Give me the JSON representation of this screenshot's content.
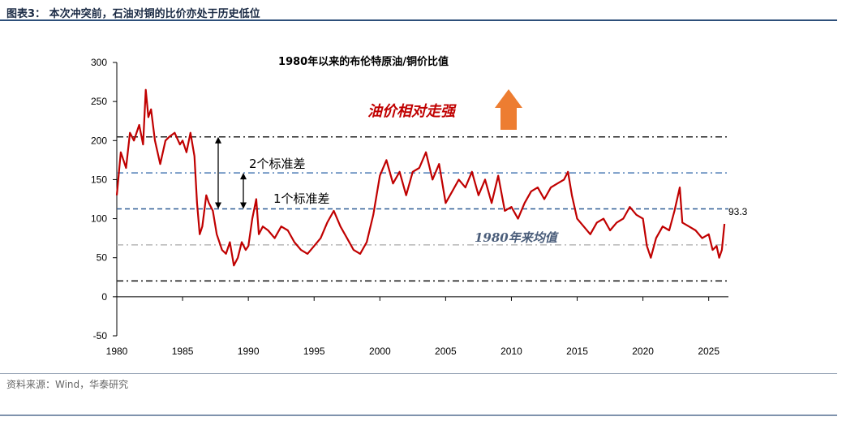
{
  "figure_title": "图表3：  本次冲突前，石油对铜的比价亦处于历史低位",
  "source": "资料来源：Wind，华泰研究",
  "chart_data": {
    "type": "line",
    "title": "1980年以来的布伦特原油/铜价比值",
    "xlabel": "",
    "ylabel": "",
    "xlim": [
      1980,
      2026.5
    ],
    "ylim": [
      -50,
      300
    ],
    "xticks": [
      1980,
      1985,
      1990,
      1995,
      2000,
      2005,
      2010,
      2015,
      2020,
      2025
    ],
    "yticks": [
      -50,
      0,
      50,
      100,
      150,
      200,
      250,
      300
    ],
    "grid": false,
    "series": [
      {
        "color": "#c00000",
        "x": [
          1980.0,
          1980.3,
          1980.7,
          1981.0,
          1981.3,
          1981.7,
          1982.0,
          1982.2,
          1982.4,
          1982.6,
          1982.9,
          1983.3,
          1983.7,
          1984.0,
          1984.4,
          1984.8,
          1985.0,
          1985.3,
          1985.6,
          1985.9,
          1986.1,
          1986.3,
          1986.5,
          1986.8,
          1987.0,
          1987.3,
          1987.6,
          1988.0,
          1988.3,
          1988.6,
          1988.9,
          1989.2,
          1989.5,
          1989.8,
          1990.0,
          1990.3,
          1990.6,
          1990.8,
          1991.1,
          1991.5,
          1992.0,
          1992.5,
          1993.0,
          1993.5,
          1994.0,
          1994.5,
          1995.0,
          1995.5,
          1996.0,
          1996.5,
          1997.0,
          1997.5,
          1998.0,
          1998.5,
          1999.0,
          1999.5,
          2000.0,
          2000.5,
          2001.0,
          2001.5,
          2002.0,
          2002.5,
          2003.0,
          2003.5,
          2004.0,
          2004.5,
          2005.0,
          2005.5,
          2006.0,
          2006.5,
          2007.0,
          2007.5,
          2008.0,
          2008.5,
          2009.0,
          2009.5,
          2010.0,
          2010.5,
          2011.0,
          2011.5,
          2012.0,
          2012.5,
          2013.0,
          2013.5,
          2014.0,
          2014.3,
          2014.6,
          2015.0,
          2015.5,
          2016.0,
          2016.5,
          2017.0,
          2017.5,
          2018.0,
          2018.5,
          2019.0,
          2019.5,
          2020.0,
          2020.3,
          2020.6,
          2021.0,
          2021.5,
          2022.0,
          2022.4,
          2022.8,
          2023.0,
          2023.5,
          2024.0,
          2024.5,
          2025.0,
          2025.3,
          2025.6,
          2025.8,
          2026.0,
          2026.2
        ],
        "y": [
          130,
          185,
          165,
          210,
          200,
          220,
          195,
          265,
          230,
          240,
          200,
          170,
          200,
          205,
          210,
          195,
          200,
          185,
          210,
          180,
          120,
          80,
          90,
          130,
          120,
          110,
          80,
          60,
          55,
          70,
          40,
          50,
          70,
          60,
          65,
          100,
          125,
          80,
          90,
          85,
          75,
          90,
          85,
          70,
          60,
          55,
          65,
          75,
          95,
          110,
          90,
          75,
          60,
          55,
          70,
          105,
          155,
          175,
          145,
          160,
          130,
          160,
          165,
          185,
          150,
          170,
          120,
          135,
          150,
          140,
          160,
          130,
          150,
          120,
          155,
          110,
          115,
          100,
          120,
          135,
          140,
          125,
          140,
          145,
          150,
          160,
          130,
          100,
          90,
          80,
          95,
          100,
          85,
          95,
          100,
          115,
          105,
          100,
          65,
          50,
          75,
          90,
          85,
          110,
          140,
          95,
          90,
          85,
          75,
          80,
          60,
          65,
          50,
          60,
          93.3
        ]
      }
    ],
    "reference_lines": [
      {
        "label": "1980年来均值",
        "y": 66.4,
        "style": "dashdot",
        "color": "#b8b8b8"
      },
      {
        "label": "1个标准差",
        "y": 112.5,
        "style": "dashed",
        "color": "#2e5c96"
      },
      {
        "label": "1个标准差",
        "y": 20.3,
        "style": "dashdot",
        "color": "#222222"
      },
      {
        "label": "2个标准差",
        "y": 158.6,
        "style": "dashdot",
        "color": "#4a7ab4"
      },
      {
        "label": "2个标准差",
        "y": 204.7,
        "style": "dashdot",
        "color": "#222222"
      }
    ],
    "annotations": [
      {
        "text": "油价相对走强",
        "color": "#c00000",
        "italic": true
      },
      {
        "text": "2个标准差"
      },
      {
        "text": "1个标准差"
      },
      {
        "text": "1980年来均值",
        "color": "#4a5d7a",
        "italic": true
      },
      {
        "text": "93.3"
      }
    ],
    "arrow_color": "#ed7d31"
  }
}
